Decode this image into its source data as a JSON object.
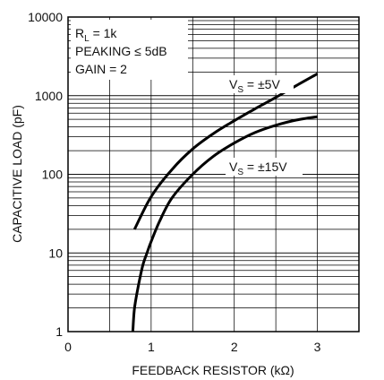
{
  "chart_data": {
    "type": "line",
    "xlabel": "FEEDBACK RESISTOR (kΩ)",
    "ylabel": "CAPACITIVE LOAD (pF)",
    "xlim": [
      0,
      3.5
    ],
    "ylim": [
      1,
      10000
    ],
    "yscale": "log",
    "grid": true,
    "x_ticks": [
      "0",
      "1",
      "2",
      "3"
    ],
    "y_ticks": [
      "1",
      "10",
      "100",
      "1000",
      "10000"
    ],
    "conditions": {
      "rl_prefix": "R",
      "rl_sub": "L",
      "rl_value": " = 1k",
      "peaking": "PEAKING ≤ 5dB",
      "gain": "GAIN = 2"
    },
    "series": [
      {
        "name_prefix": "V",
        "name_sub": "S",
        "name_value": " = ±5V",
        "x": [
          0.8,
          1.0,
          1.25,
          1.5,
          1.75,
          2.0,
          2.25,
          2.5,
          2.75,
          3.0
        ],
        "y": [
          20,
          52,
          115,
          210,
          330,
          480,
          680,
          950,
          1350,
          1900
        ]
      },
      {
        "name_prefix": "V",
        "name_sub": "S",
        "name_value": " = ±15V",
        "x": [
          0.78,
          0.8,
          0.85,
          0.9,
          0.95,
          1.0,
          1.1,
          1.25,
          1.5,
          1.75,
          2.0,
          2.25,
          2.5,
          2.75,
          3.0
        ],
        "y": [
          1,
          2,
          4,
          7,
          10,
          14,
          25,
          50,
          100,
          170,
          250,
          340,
          420,
          490,
          540
        ]
      }
    ]
  }
}
